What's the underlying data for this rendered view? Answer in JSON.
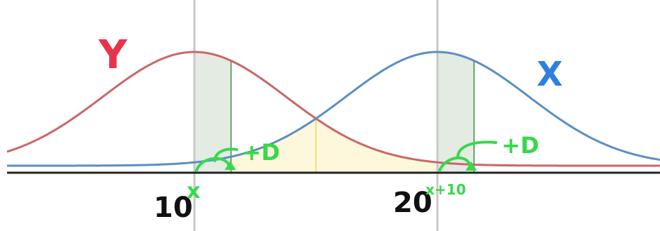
{
  "curves": {
    "y": {
      "label": "Y",
      "color": "#cc6666",
      "label_color": "#e8344a",
      "center": 10
    },
    "x": {
      "label": "X",
      "color": "#5b8ec4",
      "label_color": "#2f7fe0",
      "center": 20
    }
  },
  "ticks": [
    {
      "value": 10,
      "label": "10",
      "annotation": "x"
    },
    {
      "value": 20,
      "label": "20",
      "annotation": "x+10"
    }
  ],
  "shift_labels": [
    "+D",
    "+D"
  ],
  "colors": {
    "axis": "#222222",
    "vertical_guides": "#c8c8c8",
    "overlap_fill": "#fdf8dc",
    "overlap_divider": "#f2d45a",
    "slice_fill": "#e3ebe3",
    "slice_edge": "#3f8f3f",
    "annotation": "#38d84a"
  }
}
